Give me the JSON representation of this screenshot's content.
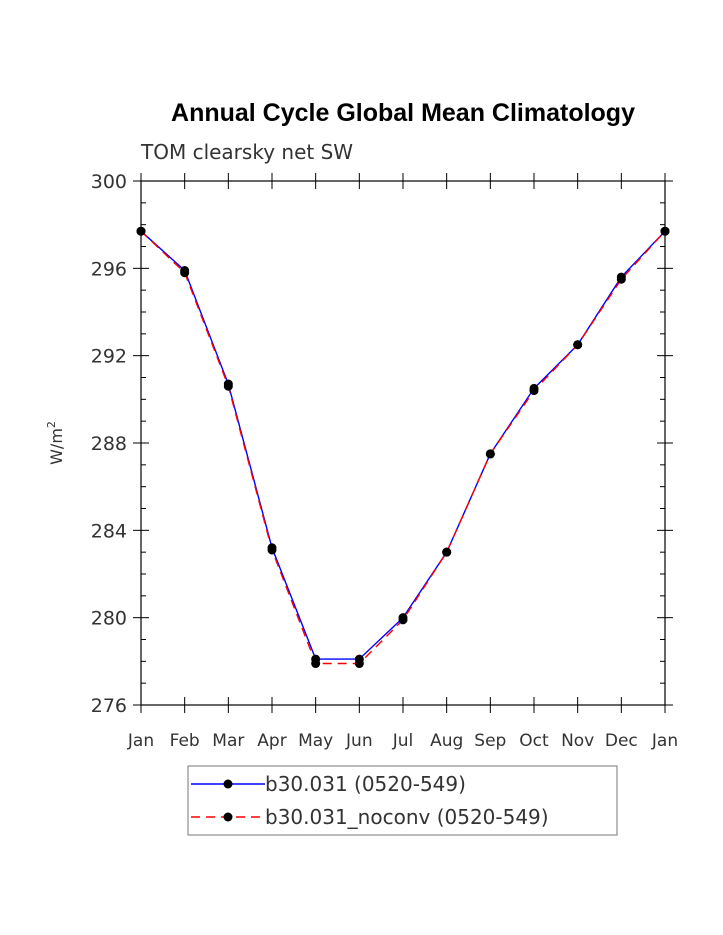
{
  "chart_data": {
    "type": "line",
    "title": "Annual Cycle Global Mean Climatology",
    "subtitle": "TOM clearsky net SW",
    "ylabel": "W/m",
    "ylabel_sup": "2",
    "ylim": [
      276,
      300
    ],
    "yticks": [
      "276",
      "280",
      "284",
      "288",
      "292",
      "296",
      "300"
    ],
    "categories": [
      "Jan",
      "Feb",
      "Mar",
      "Apr",
      "May",
      "Jun",
      "Jul",
      "Aug",
      "Sep",
      "Oct",
      "Nov",
      "Dec",
      "Jan"
    ],
    "series": [
      {
        "name": "b30.031 (0520-549)",
        "color": "#0000ff",
        "dash": "solid",
        "values": [
          297.7,
          295.9,
          290.7,
          283.2,
          278.1,
          278.1,
          280.0,
          283.0,
          287.5,
          290.5,
          292.5,
          295.6,
          297.7
        ]
      },
      {
        "name": "b30.031_noconv (0520-549)",
        "color": "#ff0000",
        "dash": "dashed",
        "values": [
          297.7,
          295.8,
          290.6,
          283.1,
          277.9,
          277.9,
          279.9,
          283.0,
          287.5,
          290.4,
          292.5,
          295.5,
          297.7
        ]
      }
    ],
    "legend_position": "bottom"
  }
}
